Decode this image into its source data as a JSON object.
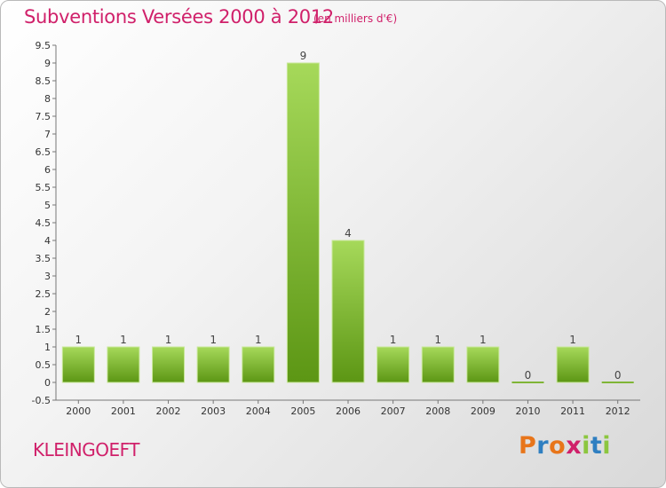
{
  "header": {
    "title": "Subventions Versées 2000 à 2012",
    "subtitle": "(en milliers d'€)"
  },
  "footer": {
    "commune": "KLEINGOEFT",
    "logo": "Proxiti"
  },
  "colors": {
    "accent": "#d0206a",
    "bar_light": "#9ed24e",
    "bar_dark": "#5f9a17",
    "logo_letters": [
      "#e8751a",
      "#2f7fc1",
      "#e8751a",
      "#d0206a",
      "#8cc63f",
      "#2f7fc1",
      "#8cc63f"
    ]
  },
  "chart_data": {
    "type": "bar",
    "title": "Subventions Versées 2000 à 2012",
    "subtitle": "(en milliers d'€)",
    "categories": [
      "2000",
      "2001",
      "2002",
      "2003",
      "2004",
      "2005",
      "2006",
      "2007",
      "2008",
      "2009",
      "2010",
      "2011",
      "2012"
    ],
    "values": [
      1,
      1,
      1,
      1,
      1,
      9,
      4,
      1,
      1,
      1,
      0,
      1,
      0
    ],
    "data_labels": [
      "1",
      "1",
      "1",
      "1",
      "1",
      "9",
      "4",
      "1",
      "1",
      "1",
      "0",
      "1",
      "0"
    ],
    "ylim": [
      -0.5,
      9.5
    ],
    "yticks": [
      "-0.5",
      "0",
      "0.5",
      "1",
      "1.5",
      "2",
      "2.5",
      "3",
      "3.5",
      "4",
      "4.5",
      "5",
      "5.5",
      "6",
      "6.5",
      "7",
      "7.5",
      "8",
      "8.5",
      "9",
      "9.5"
    ],
    "xlabel": "",
    "ylabel": "",
    "grid": false,
    "legend": "none"
  }
}
